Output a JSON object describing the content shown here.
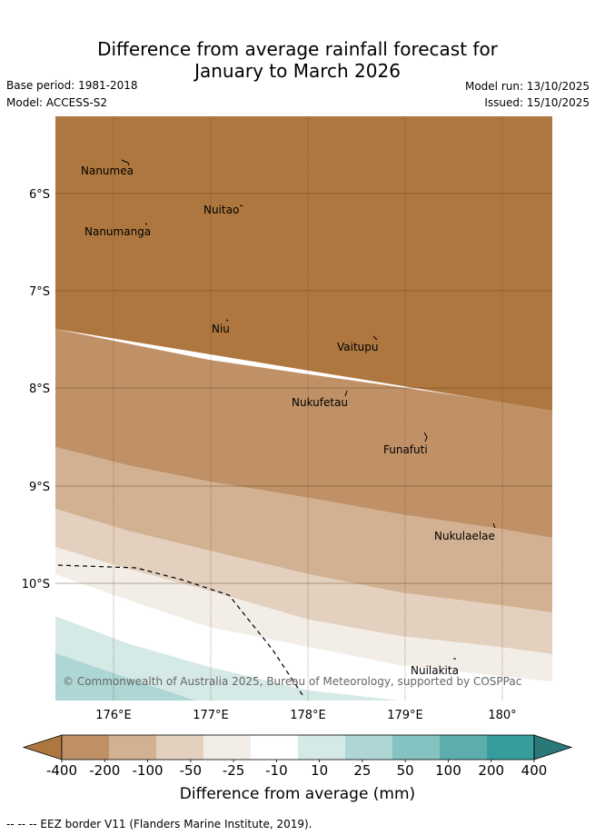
{
  "header": {
    "title_line1": "Difference from average rainfall forecast for",
    "title_line2": "January to March 2026",
    "base_period": "Base period: 1981-2018",
    "model": "Model: ACCESS-S2",
    "model_run": "Model run: 13/10/2025",
    "issued": "Issued: 15/10/2025"
  },
  "map": {
    "lat_labels": [
      "6°S",
      "7°S",
      "8°S",
      "9°S",
      "10°S"
    ],
    "lon_labels": [
      "176°E",
      "177°E",
      "178°E",
      "179°E",
      "180°"
    ],
    "places": [
      "Nanumea",
      "Nuitao",
      "Nanumanga",
      "Niu",
      "Vaitupu",
      "Nukufetau",
      "Funafuti",
      "Nukulaelae",
      "Nuilakita"
    ],
    "copyright": "© Commonwealth of Australia 2025, Bureau of Meteorology, supported by COSPPac"
  },
  "legend": {
    "ticks": [
      "-400",
      "-200",
      "-100",
      "-50",
      "-25",
      "-10",
      "10",
      "25",
      "50",
      "100",
      "200",
      "400"
    ],
    "colors": [
      "#ae773f",
      "#c09167",
      "#d2b192",
      "#e3d0be",
      "#f2ede7",
      "#ffffff",
      "#d5e9e7",
      "#add6d4",
      "#85c2c2",
      "#5eadad",
      "#369c9c",
      "#2b7878"
    ],
    "label": "Difference from average (mm)"
  },
  "footnote": "--  --  -- EEZ border V11 (Flanders Marine Institute, 2019)."
}
